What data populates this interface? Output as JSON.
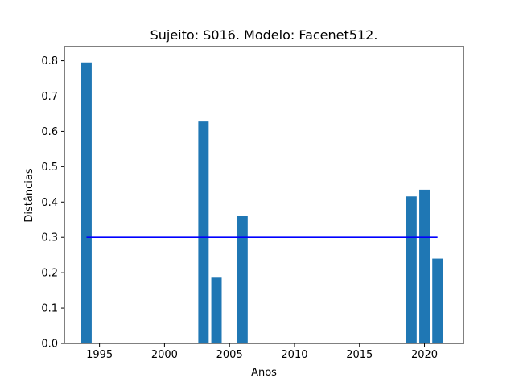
{
  "chart_data": {
    "type": "bar",
    "title": "Sujeito: S016. Modelo: Facenet512.",
    "xlabel": "Anos",
    "ylabel": "Distâncias",
    "xlim": [
      1992.3,
      2023.0
    ],
    "ylim": [
      0.0,
      0.84
    ],
    "xticks": [
      1995,
      2000,
      2005,
      2010,
      2015,
      2020
    ],
    "yticks": [
      0.0,
      0.1,
      0.2,
      0.3,
      0.4,
      0.5,
      0.6,
      0.7,
      0.8
    ],
    "ytick_labels": [
      "0.0",
      "0.1",
      "0.2",
      "0.3",
      "0.4",
      "0.5",
      "0.6",
      "0.7",
      "0.8"
    ],
    "bar_color": "#1f77b4",
    "bar_width_years": 0.8,
    "categories": [
      1994,
      2003,
      2004,
      2006,
      2019,
      2020,
      2021
    ],
    "values": [
      0.795,
      0.628,
      0.186,
      0.36,
      0.416,
      0.435,
      0.24
    ],
    "threshold": {
      "y": 0.3,
      "x_start": 1994,
      "x_end": 2021,
      "color": "#0000ff"
    },
    "grid": false,
    "legend": "none"
  }
}
